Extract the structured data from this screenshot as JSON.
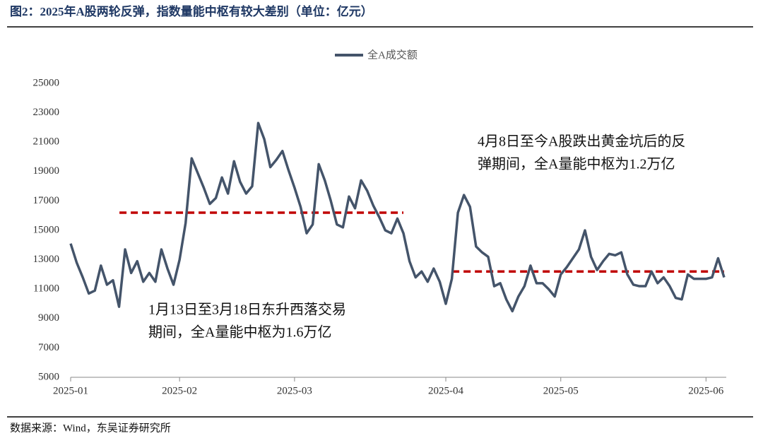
{
  "chart_data": {
    "type": "line",
    "title": "图2：2025年A股两轮反弹，指数量能中枢有较大差别（单位：亿元）",
    "source": "数据来源：Wind，东吴证券研究所",
    "categories": [
      "2025-01",
      null,
      null,
      null,
      null,
      null,
      null,
      null,
      null,
      null,
      null,
      null,
      null,
      null,
      null,
      null,
      null,
      null,
      "2025-02",
      null,
      null,
      null,
      null,
      null,
      null,
      null,
      null,
      null,
      null,
      null,
      null,
      null,
      null,
      null,
      null,
      null,
      null,
      "2025-03",
      null,
      null,
      null,
      null,
      null,
      null,
      null,
      null,
      null,
      null,
      null,
      null,
      null,
      null,
      null,
      null,
      null,
      null,
      null,
      null,
      null,
      null,
      null,
      null,
      "2025-04",
      null,
      null,
      null,
      null,
      null,
      null,
      null,
      null,
      null,
      null,
      null,
      null,
      null,
      null,
      null,
      null,
      null,
      null,
      "2025-05",
      null,
      null,
      null,
      null,
      null,
      null,
      null,
      null,
      null,
      null,
      null,
      null,
      null,
      null,
      null,
      null,
      null,
      null,
      null,
      null,
      null,
      null,
      null,
      "2025-06",
      null,
      null,
      null
    ],
    "series": [
      {
        "name": "全A成交额",
        "color": "#44546a",
        "values": [
          14100,
          12800,
          11800,
          10700,
          10900,
          12600,
          11300,
          11600,
          9800,
          13700,
          12100,
          12900,
          11500,
          12100,
          11500,
          13700,
          12400,
          11300,
          13000,
          15500,
          19900,
          18900,
          17900,
          16800,
          17200,
          18600,
          17500,
          19700,
          18300,
          17500,
          18000,
          22300,
          21200,
          19300,
          19800,
          20400,
          19100,
          17900,
          16600,
          14800,
          15400,
          19500,
          18400,
          17000,
          15400,
          15200,
          17300,
          16500,
          18400,
          17700,
          16700,
          15900,
          15000,
          14800,
          15800,
          14800,
          12900,
          11800,
          12200,
          11500,
          12400,
          11500,
          10000,
          11700,
          16200,
          17400,
          16600,
          13900,
          13500,
          13200,
          11200,
          11400,
          10300,
          9500,
          10500,
          11200,
          12600,
          11400,
          11400,
          11000,
          10500,
          12000,
          12500,
          13100,
          13700,
          15000,
          13200,
          12300,
          12900,
          13400,
          13300,
          13500,
          12000,
          11300,
          11200,
          11200,
          12200,
          11400,
          11800,
          11200,
          10400,
          10300,
          12000,
          11700,
          11700,
          11700,
          11800,
          13100,
          11800
        ]
      }
    ],
    "ylim": [
      5000,
      25000
    ],
    "yticks": [
      5000,
      7000,
      9000,
      11000,
      13000,
      15000,
      17000,
      19000,
      21000,
      23000,
      25000
    ],
    "reference_lines": [
      {
        "value": 16200,
        "color": "#c00000"
      },
      {
        "value": 12200,
        "color": "#c00000"
      }
    ],
    "annotations": [
      [
        "1月13日至3月18日东升西落交易",
        "期间，全A量能中枢为1.6万亿"
      ],
      [
        "4月8日至今A股跌出黄金坑后的反",
        "弹期间，全A量能中枢为1.2万亿"
      ]
    ]
  }
}
